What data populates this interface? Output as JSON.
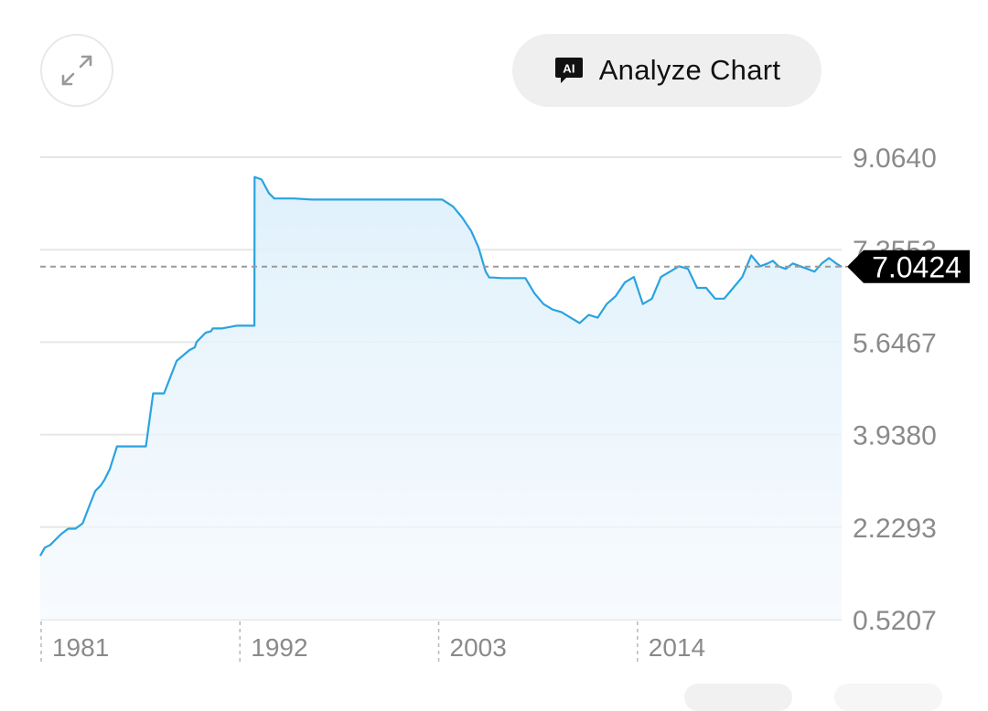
{
  "toolbar": {
    "expand_icon": "expand-arrows-icon",
    "analyze_icon": "ai-chat-icon",
    "ai_badge": "AI",
    "analyze_label": "Analyze Chart"
  },
  "chart_data": {
    "type": "area",
    "y_ticks": [
      "9.0640",
      "7.3553",
      "5.6467",
      "3.9380",
      "2.2293",
      "0.5207"
    ],
    "x_ticks": [
      "1981",
      "1992",
      "2003",
      "2014"
    ],
    "ylim": [
      0.5207,
      9.064
    ],
    "xlim": [
      1980.95,
      2025.3
    ],
    "current_value": 7.0424,
    "current_label": "7.0424",
    "grid": true,
    "colors": {
      "line": "#2aa3e0",
      "fill": "#e8f4fc",
      "grid": "#e6e6e6",
      "label_bg": "#000000"
    },
    "series": [
      {
        "x": [
          1980.95,
          1981.2,
          1981.5,
          1981.8,
          1982.1,
          1982.5,
          1982.9,
          1983.3,
          1983.7,
          1984.0,
          1984.3,
          1984.5,
          1984.8,
          1985.2,
          1985.6,
          1985.9,
          1986.2,
          1986.5,
          1986.8,
          1987.2,
          1987.8,
          1988.5,
          1989.2,
          1989.5,
          1989.6,
          1990.1,
          1990.4,
          1990.5,
          1991.0,
          1991.5,
          1991.8,
          1992.2,
          1992.5,
          1992.8,
          1992.81,
          1993.2,
          1993.6,
          1993.9,
          1994.2,
          1995.0,
          1996.0,
          1998.0,
          2000.0,
          2002.0,
          2003.2,
          2003.8,
          2004.3,
          2004.8,
          2005.2,
          2005.6,
          2005.8,
          2006.0,
          2006.5,
          2007.0,
          2007.8,
          2008.3,
          2008.8,
          2009.3,
          2009.8,
          2010.3,
          2010.8,
          2011.3,
          2011.8,
          2012.3,
          2012.8,
          2013.3,
          2013.8,
          2014.3,
          2014.8,
          2015.3,
          2015.8,
          2016.3,
          2016.8,
          2017.3,
          2017.8,
          2018.3,
          2018.8,
          2019.3,
          2019.8,
          2020.3,
          2020.8,
          2021.2,
          2021.5,
          2021.8,
          2022.2,
          2022.6,
          2023.0,
          2023.4,
          2023.8,
          2024.2,
          2024.6,
          2025.0,
          2025.3
        ],
        "values": [
          1.7,
          1.85,
          1.9,
          2.0,
          2.1,
          2.2,
          2.2,
          2.3,
          2.65,
          2.9,
          3.0,
          3.1,
          3.3,
          3.72,
          3.72,
          3.72,
          3.72,
          3.72,
          3.72,
          4.7,
          4.7,
          5.3,
          5.5,
          5.55,
          5.65,
          5.82,
          5.85,
          5.9,
          5.9,
          5.93,
          5.95,
          5.95,
          5.95,
          5.95,
          8.7,
          8.65,
          8.4,
          8.3,
          8.3,
          8.3,
          8.28,
          8.28,
          8.28,
          8.28,
          8.28,
          8.15,
          7.95,
          7.7,
          7.4,
          6.95,
          6.84,
          6.84,
          6.83,
          6.83,
          6.83,
          6.55,
          6.35,
          6.25,
          6.2,
          6.1,
          6.0,
          6.15,
          6.1,
          6.35,
          6.5,
          6.75,
          6.85,
          6.35,
          6.45,
          6.85,
          6.95,
          7.05,
          7.0,
          6.65,
          6.65,
          6.45,
          6.45,
          6.65,
          6.85,
          7.25,
          7.05,
          7.1,
          7.15,
          7.05,
          7.0,
          7.1,
          7.05,
          7.0,
          6.95,
          7.1,
          7.2,
          7.1,
          7.04
        ]
      }
    ]
  }
}
